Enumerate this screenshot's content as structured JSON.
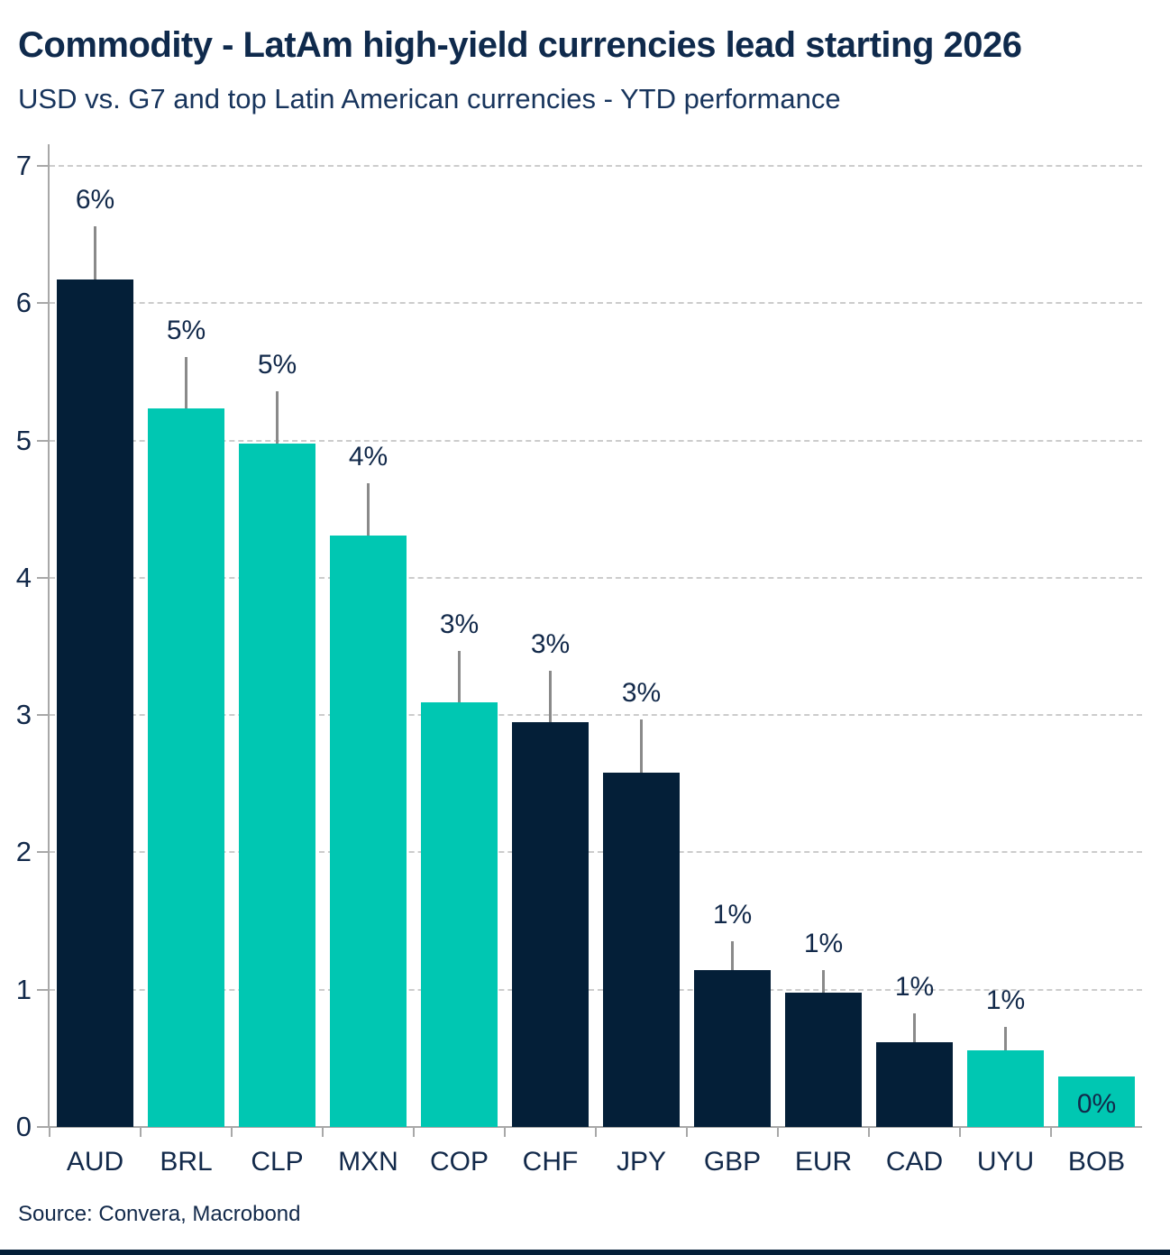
{
  "header": {
    "title": "Commodity - LatAm high-yield currencies lead starting 2026",
    "subtitle": "USD vs. G7 and top Latin American currencies - YTD performance"
  },
  "source_text": "Source: Convera, Macrobond",
  "colors": {
    "navy": "#041f38",
    "teal": "#00c7b2",
    "text": "#12294a",
    "gridline": "#cccccc",
    "axis": "#a8a8a8",
    "whisker": "#8a8a8a"
  },
  "chart_data": {
    "type": "bar",
    "title": "Commodity - LatAm high-yield currencies lead starting 2026",
    "subtitle": "USD vs. G7 and top Latin American currencies - YTD performance",
    "xlabel": "",
    "ylabel": "",
    "ylim": [
      0,
      7
    ],
    "yticks": [
      0,
      1,
      2,
      3,
      4,
      5,
      6,
      7
    ],
    "grid": "horizontal-dashed",
    "legend": "none",
    "categories": [
      "AUD",
      "BRL",
      "CLP",
      "MXN",
      "COP",
      "CHF",
      "JPY",
      "GBP",
      "EUR",
      "CAD",
      "UYU",
      "BOB"
    ],
    "values": [
      6.17,
      5.23,
      4.98,
      4.31,
      3.09,
      2.95,
      2.58,
      1.14,
      0.98,
      0.62,
      0.56,
      0.37
    ],
    "bars": [
      {
        "code": "AUD",
        "value": 6.17,
        "whisker_top": 6.56,
        "label": "6%",
        "color_key": "navy",
        "label_inside": false
      },
      {
        "code": "BRL",
        "value": 5.23,
        "whisker_top": 5.61,
        "label": "5%",
        "color_key": "teal",
        "label_inside": false
      },
      {
        "code": "CLP",
        "value": 4.98,
        "whisker_top": 5.36,
        "label": "5%",
        "color_key": "teal",
        "label_inside": false
      },
      {
        "code": "MXN",
        "value": 4.31,
        "whisker_top": 4.69,
        "label": "4%",
        "color_key": "teal",
        "label_inside": false
      },
      {
        "code": "COP",
        "value": 3.09,
        "whisker_top": 3.47,
        "label": "3%",
        "color_key": "teal",
        "label_inside": false
      },
      {
        "code": "CHF",
        "value": 2.95,
        "whisker_top": 3.32,
        "label": "3%",
        "color_key": "navy",
        "label_inside": false
      },
      {
        "code": "JPY",
        "value": 2.58,
        "whisker_top": 2.97,
        "label": "3%",
        "color_key": "navy",
        "label_inside": false
      },
      {
        "code": "GBP",
        "value": 1.14,
        "whisker_top": 1.35,
        "label": "1%",
        "color_key": "navy",
        "label_inside": false
      },
      {
        "code": "EUR",
        "value": 0.98,
        "whisker_top": 1.14,
        "label": "1%",
        "color_key": "navy",
        "label_inside": false
      },
      {
        "code": "CAD",
        "value": 0.62,
        "whisker_top": 0.83,
        "label": "1%",
        "color_key": "navy",
        "label_inside": false
      },
      {
        "code": "UYU",
        "value": 0.56,
        "whisker_top": 0.73,
        "label": "1%",
        "color_key": "teal",
        "label_inside": false
      },
      {
        "code": "BOB",
        "value": 0.37,
        "whisker_top": null,
        "label": "0%",
        "color_key": "teal",
        "label_inside": true
      }
    ]
  }
}
